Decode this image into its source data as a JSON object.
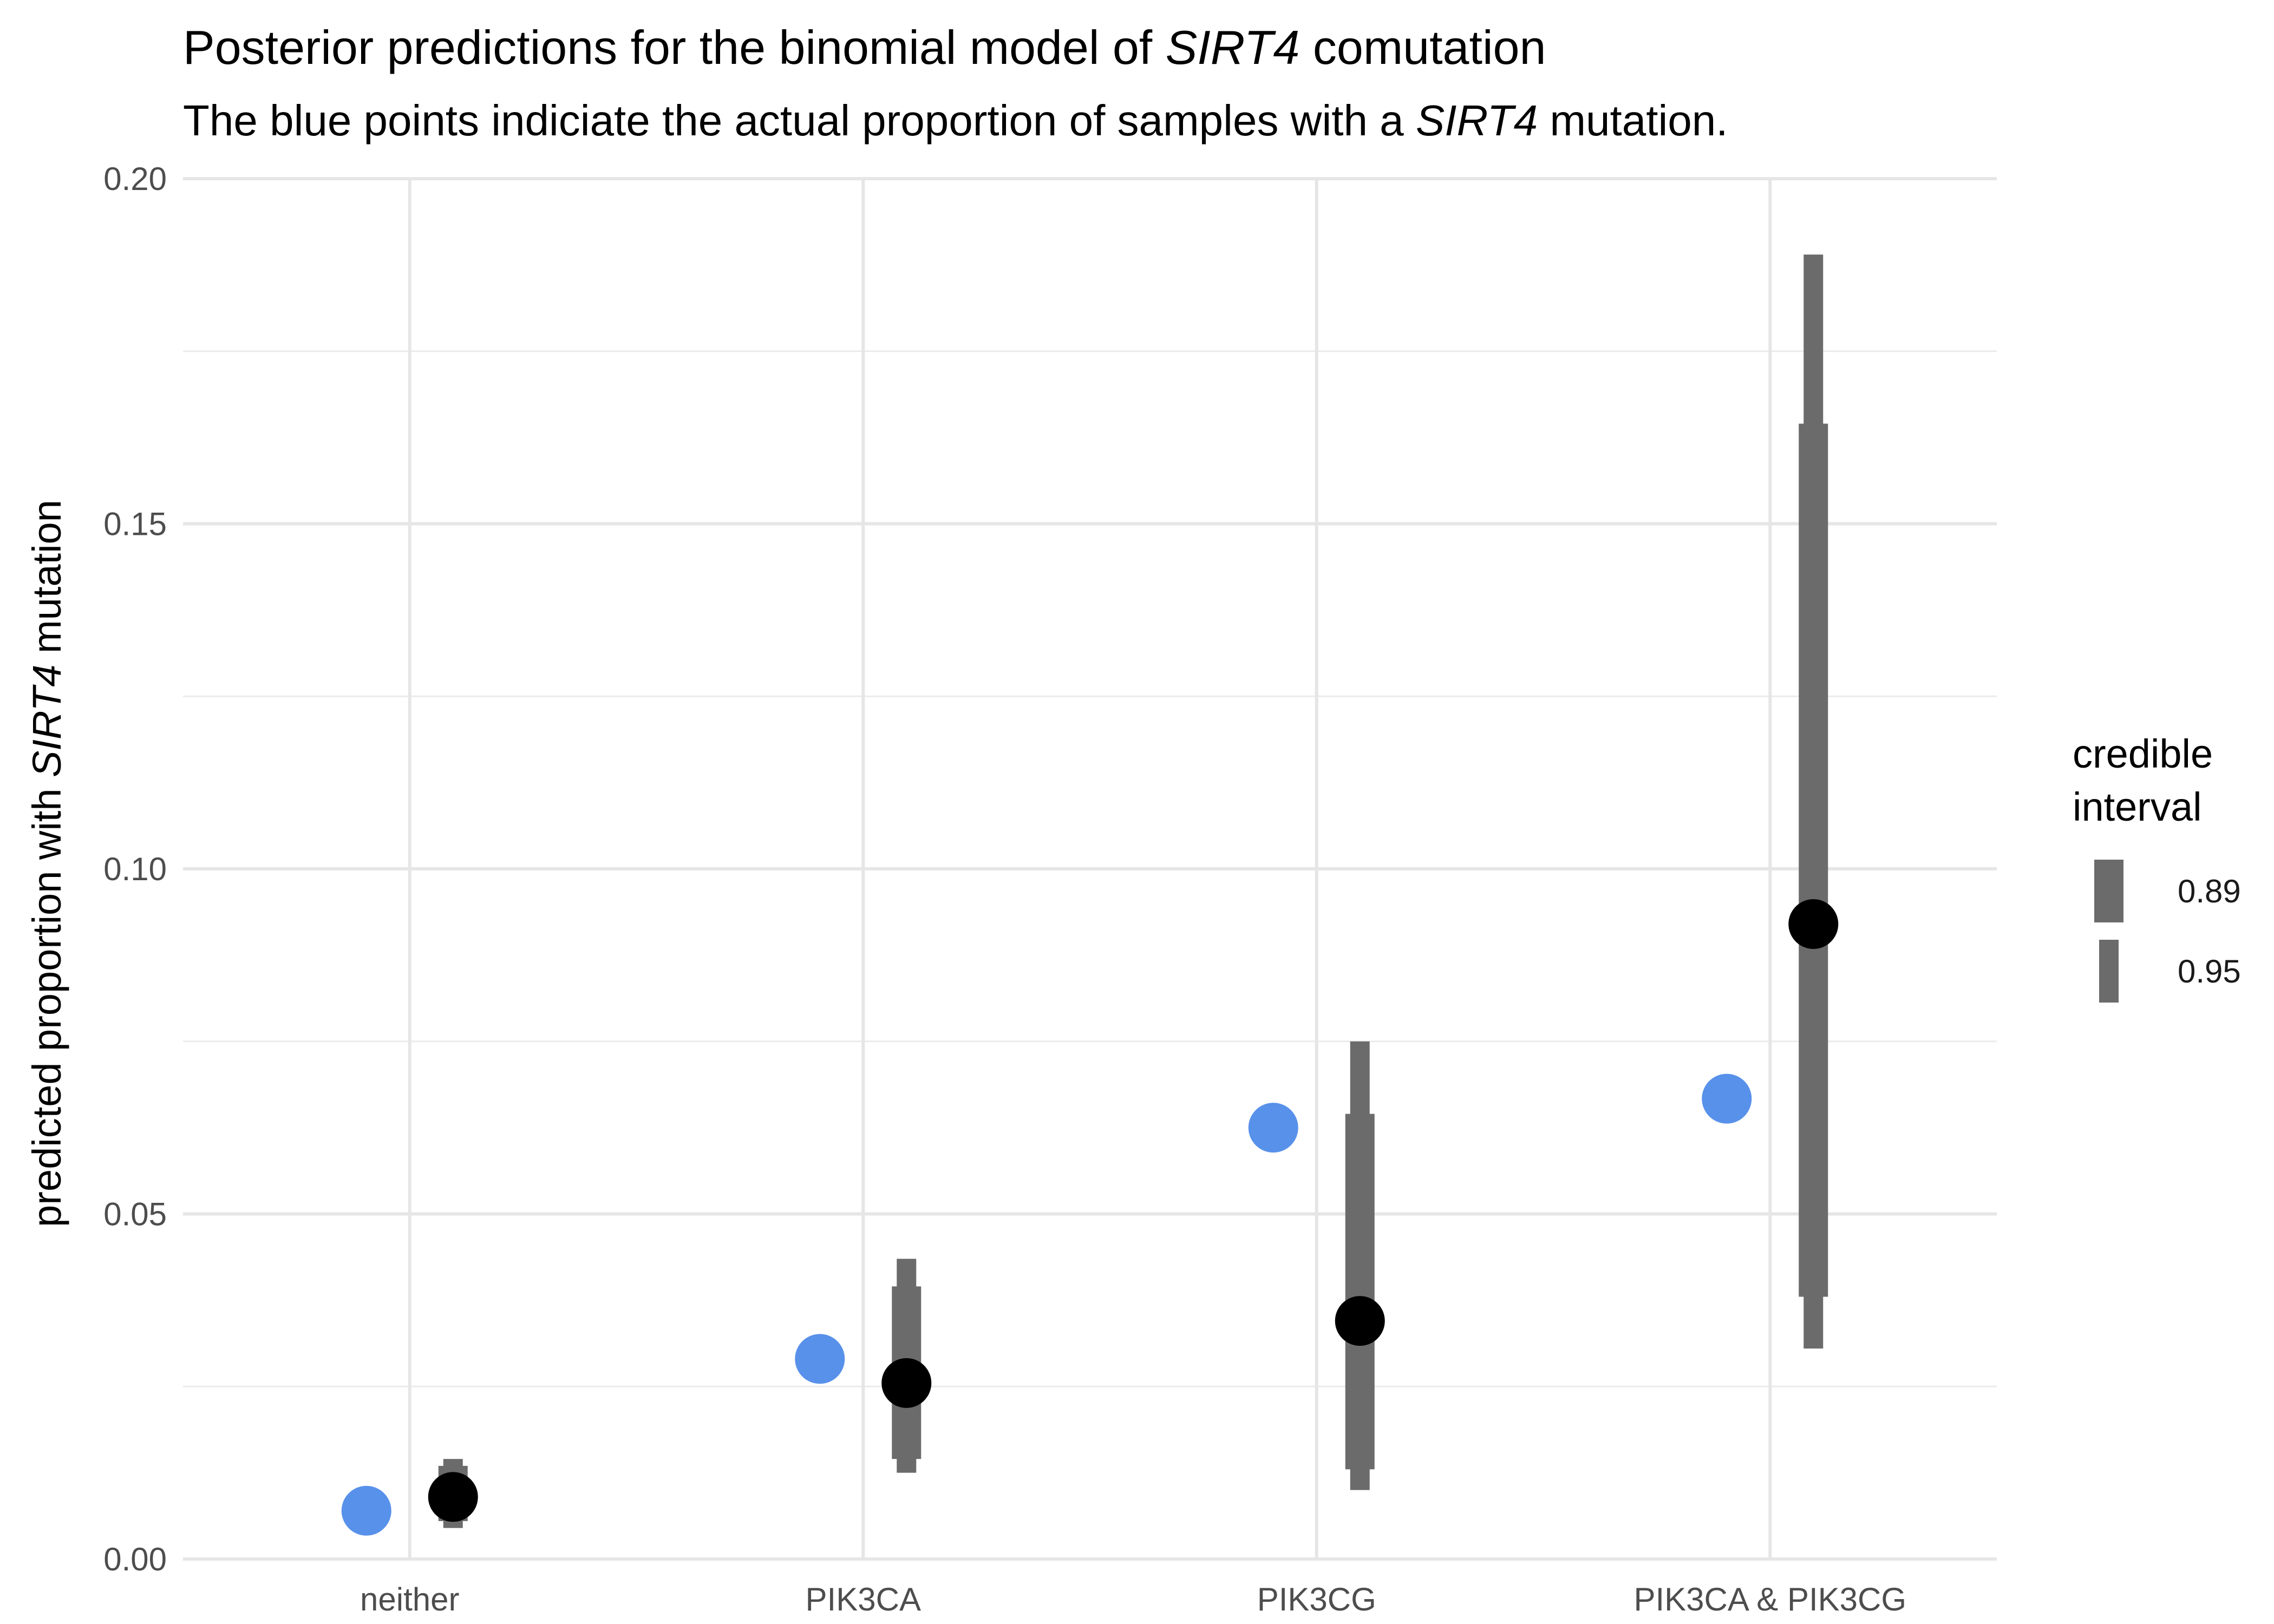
{
  "chart_data": {
    "type": "pointrange",
    "title": {
      "prefix": "Posterior predictions for the binomial model of ",
      "gene": "SIRT4",
      "suffix": " comutation"
    },
    "subtitle": {
      "prefix": "The blue points indiciate the actual proportion of samples with a ",
      "gene": "SIRT4",
      "suffix": " mutation."
    },
    "ylabel": {
      "prefix": "predicted proportion with ",
      "gene": "SIRT4",
      "suffix": " mutation"
    },
    "xlabel": "",
    "ylim": [
      0,
      0.2
    ],
    "y_ticks": [
      0,
      0.05,
      0.1,
      0.15,
      0.2
    ],
    "y_tick_labels": [
      "0.00",
      "0.05",
      "0.10",
      "0.15",
      "0.20"
    ],
    "grid": true,
    "categories": [
      "neither",
      "PIK3CA",
      "PIK3CG",
      "PIK3CA & PIK3CG"
    ],
    "observed_proportion": [
      0.007,
      0.029,
      0.0625,
      0.0667
    ],
    "predicted_mean": [
      0.009,
      0.0255,
      0.0345,
      0.092
    ],
    "interval_89": [
      [
        0.0055,
        0.0135
      ],
      [
        0.0145,
        0.0395
      ],
      [
        0.013,
        0.0645
      ],
      [
        0.038,
        0.1645
      ]
    ],
    "interval_95": [
      [
        0.0045,
        0.0145
      ],
      [
        0.0125,
        0.0435
      ],
      [
        0.01,
        0.075
      ],
      [
        0.0305,
        0.189
      ]
    ],
    "legend": {
      "title_line1": "credible",
      "title_line2": "interval",
      "position": "right",
      "entries": [
        "0.89",
        "0.95"
      ]
    },
    "colors": {
      "observed": "#5891EA",
      "predicted": "#000000",
      "interval": "#6B6B6B"
    }
  }
}
